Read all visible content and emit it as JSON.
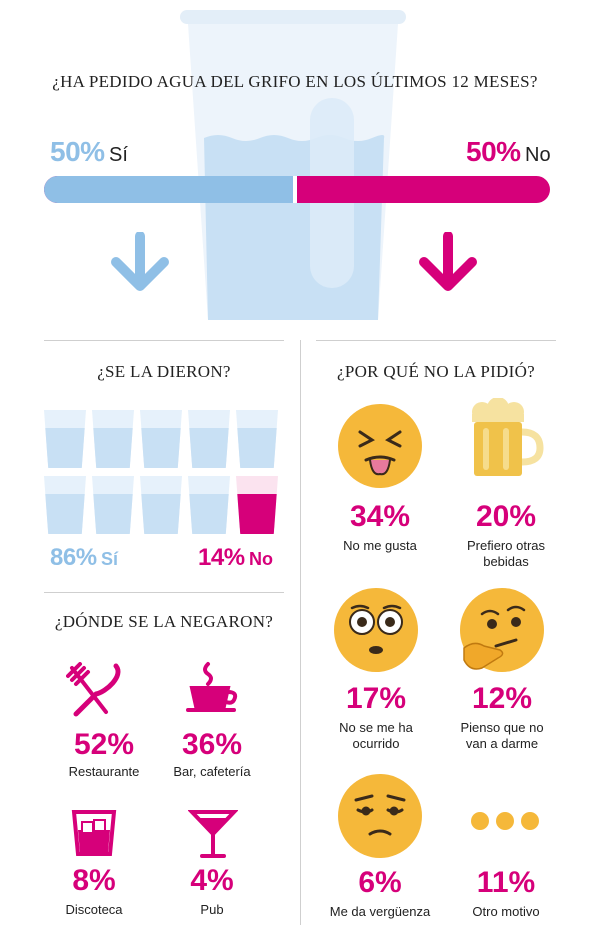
{
  "colors": {
    "blue": "#8fbfe6",
    "pink": "#d6007a",
    "emoji_yellow": "#f5b83a",
    "water": "#c8e0f4"
  },
  "header": {
    "question": "¿HA PEDIDO AGUA DEL GRIFO EN LOS ÚLTIMOS 12 MESES?",
    "yes_pct": "50%",
    "yes_label": "Sí",
    "no_pct": "50%",
    "no_label": "No",
    "yes_share": 0.5
  },
  "given": {
    "question": "¿SE LA DIERON?",
    "yes_pct": "86%",
    "yes_label": "Sí",
    "no_pct": "14%",
    "no_label": "No",
    "no_fill": 0.14
  },
  "denied": {
    "question": "¿DÓNDE SE LA NEGARON?",
    "items": [
      {
        "pct": "52%",
        "label": "Restaurante",
        "icon": "fork-knife-icon"
      },
      {
        "pct": "36%",
        "label": "Bar, cafetería",
        "icon": "coffee-cup-icon"
      },
      {
        "pct": "8%",
        "label": "Discoteca",
        "icon": "whisky-glass-icon"
      },
      {
        "pct": "4%",
        "label": "Pub",
        "icon": "cocktail-glass-icon"
      }
    ]
  },
  "reasons": {
    "question": "¿POR QUÉ NO LA PIDIÓ?",
    "items": [
      {
        "pct": "34%",
        "label": "No me gusta",
        "icon": "disgusted-face-icon"
      },
      {
        "pct": "20%",
        "label": "Prefiero otras bebidas",
        "icon": "beer-mug-icon"
      },
      {
        "pct": "17%",
        "label": "No se me ha ocurrido",
        "icon": "surprised-face-icon"
      },
      {
        "pct": "12%",
        "label": "Pienso que no van a darme",
        "icon": "thinking-face-icon"
      },
      {
        "pct": "6%",
        "label": "Me da vergüenza",
        "icon": "embarrassed-face-icon"
      },
      {
        "pct": "11%",
        "label": "Otro motivo",
        "icon": "ellipsis-icon"
      }
    ]
  }
}
